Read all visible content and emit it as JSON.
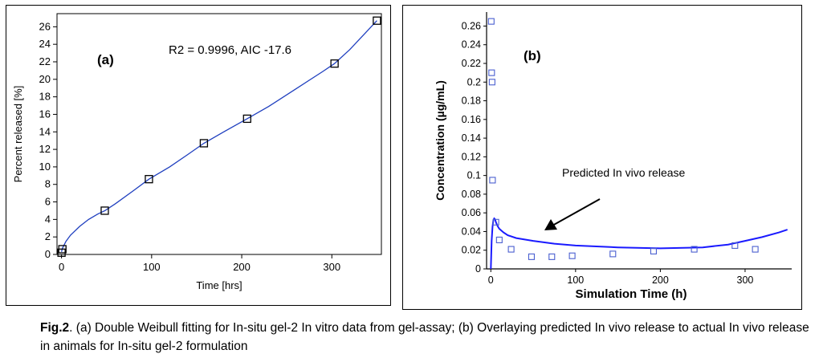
{
  "chart_data": [
    {
      "type": "scatter",
      "panel_label": "(a)",
      "annotation": "R2 = 0.9996, AIC -17.6",
      "xlabel": "Time [hrs]",
      "ylabel": "Percent released [%]",
      "xlim": [
        -5,
        355
      ],
      "ylim": [
        0,
        27.5
      ],
      "x_ticks": [
        0,
        100,
        200,
        300
      ],
      "x_tick_labels": [
        "0",
        "100",
        "200",
        "300"
      ],
      "y_ticks": [
        0,
        2,
        4,
        6,
        8,
        10,
        12,
        14,
        16,
        18,
        20,
        22,
        24,
        26
      ],
      "y_tick_labels": [
        "0",
        "2",
        "4",
        "6",
        "8",
        "10",
        "12",
        "14",
        "16",
        "18",
        "20",
        "22",
        "24",
        "26"
      ],
      "series": [
        {
          "kind": "observed",
          "marker": "square",
          "x": [
            0,
            1,
            48,
            97,
            158,
            206,
            303,
            350
          ],
          "y": [
            0.2,
            0.6,
            5.0,
            8.6,
            12.7,
            15.5,
            21.8,
            26.7
          ]
        },
        {
          "kind": "fit",
          "x": [
            0,
            1,
            5,
            10,
            20,
            30,
            40,
            48,
            60,
            80,
            97,
            120,
            140,
            158,
            180,
            206,
            230,
            260,
            290,
            303,
            320,
            340,
            350
          ],
          "y": [
            0.3,
            0.7,
            1.5,
            2.2,
            3.2,
            4.0,
            4.6,
            5.0,
            5.8,
            7.3,
            8.6,
            10.0,
            11.4,
            12.7,
            14.0,
            15.5,
            16.9,
            18.9,
            20.9,
            21.8,
            23.4,
            25.6,
            26.7
          ]
        }
      ],
      "colors": {
        "fit": "#1f3fbf",
        "markers": "#000000"
      }
    },
    {
      "type": "scatter",
      "panel_label": "(b)",
      "annotation": "Predicted In vivo release",
      "xlabel": "Simulation Time (h)",
      "ylabel": "Concentration (µg/mL)",
      "xlim": [
        -5,
        355
      ],
      "ylim": [
        0,
        0.275
      ],
      "x_ticks": [
        0,
        100,
        200,
        300
      ],
      "x_tick_labels": [
        "0",
        "100",
        "200",
        "300"
      ],
      "y_ticks": [
        0,
        0.02,
        0.04,
        0.06,
        0.08,
        0.1,
        0.12,
        0.14,
        0.16,
        0.18,
        0.2,
        0.22,
        0.24,
        0.26
      ],
      "y_tick_labels": [
        "0",
        "0.02",
        "0.04",
        "0.06",
        "0.08",
        "0.1",
        "0.12",
        "0.14",
        "0.16",
        "0.18",
        "0.2",
        "0.22",
        "0.24",
        "0.26"
      ],
      "series": [
        {
          "kind": "observed",
          "marker": "square",
          "x": [
            0.5,
            1,
            1.5,
            2,
            6,
            10,
            24,
            48,
            72,
            96,
            144,
            192,
            240,
            288,
            312
          ],
          "y": [
            0.265,
            0.21,
            0.2,
            0.095,
            0.05,
            0.031,
            0.021,
            0.013,
            0.013,
            0.014,
            0.016,
            0.019,
            0.021,
            0.025,
            0.021
          ]
        },
        {
          "kind": "predicted",
          "x": [
            0,
            1,
            2,
            3,
            4,
            5,
            6,
            8,
            10,
            15,
            20,
            30,
            50,
            75,
            100,
            150,
            200,
            250,
            280,
            300,
            320,
            340,
            350
          ],
          "y": [
            0,
            0.03,
            0.045,
            0.052,
            0.054,
            0.053,
            0.05,
            0.046,
            0.043,
            0.039,
            0.036,
            0.033,
            0.03,
            0.027,
            0.025,
            0.023,
            0.022,
            0.023,
            0.026,
            0.03,
            0.034,
            0.039,
            0.042
          ]
        }
      ],
      "colors": {
        "line": "#1a1aff",
        "markers": "#4a5fd0"
      }
    }
  ],
  "caption": {
    "label": "Fig.2",
    "text": ". (a) Double Weibull fitting for In-situ gel-2 In vitro data from gel-assay; (b) Overlaying predicted In vivo release to actual In vivo release in animals for In-situ gel-2 formulation"
  }
}
